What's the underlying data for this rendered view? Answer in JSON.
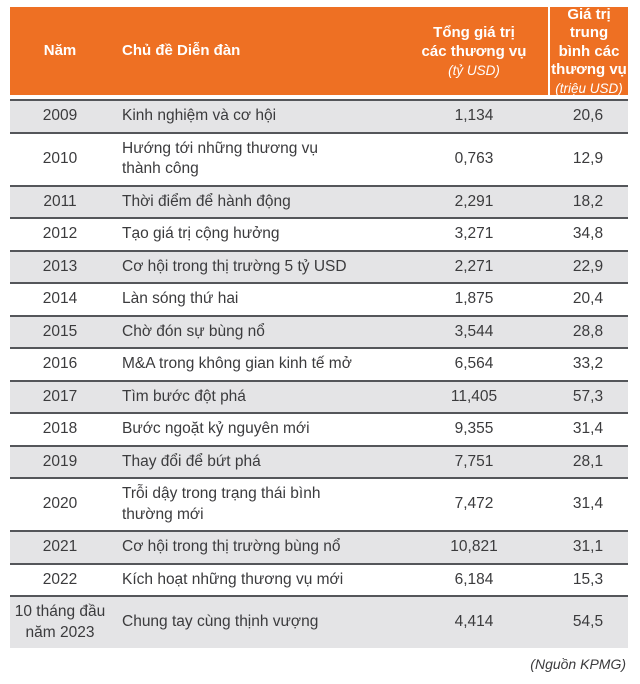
{
  "chart_data": {
    "type": "table",
    "columns": [
      {
        "label": "Năm",
        "unit": ""
      },
      {
        "label": "Chủ đề Diễn đàn",
        "unit": ""
      },
      {
        "label": "Tổng giá trị\ncác thương vụ",
        "unit": "(tỷ USD)"
      },
      {
        "label": "Giá trị trung\nbình các\nthương vụ",
        "unit": "(triệu USD)"
      }
    ],
    "rows": [
      {
        "year": "2009",
        "theme": "Kinh nghiệm và cơ hội",
        "total": "1,134",
        "avg": "20,6"
      },
      {
        "year": "2010",
        "theme": "Hướng tới những thương vụ\nthành công",
        "total": "0,763",
        "avg": "12,9"
      },
      {
        "year": "2011",
        "theme": "Thời điểm để hành động",
        "total": "2,291",
        "avg": "18,2"
      },
      {
        "year": "2012",
        "theme": "Tạo giá trị cộng hưởng",
        "total": "3,271",
        "avg": "34,8"
      },
      {
        "year": "2013",
        "theme": "Cơ hội trong thị trường 5 tỷ USD",
        "total": "2,271",
        "avg": "22,9"
      },
      {
        "year": "2014",
        "theme": "Làn sóng thứ hai",
        "total": "1,875",
        "avg": "20,4"
      },
      {
        "year": "2015",
        "theme": "Chờ đón sự bùng nổ",
        "total": "3,544",
        "avg": "28,8"
      },
      {
        "year": "2016",
        "theme": "M&A trong không gian kinh tế mở",
        "total": "6,564",
        "avg": "33,2"
      },
      {
        "year": "2017",
        "theme": "Tìm bước đột phá",
        "total": "11,405",
        "avg": "57,3"
      },
      {
        "year": "2018",
        "theme": "Bước ngoặt kỷ nguyên mới",
        "total": "9,355",
        "avg": "31,4"
      },
      {
        "year": "2019",
        "theme": "Thay đổi để bứt phá",
        "total": "7,751",
        "avg": "28,1"
      },
      {
        "year": "2020",
        "theme": "Trỗi dậy trong trạng thái bình\nthường mới",
        "total": "7,472",
        "avg": "31,4"
      },
      {
        "year": "2021",
        "theme": "Cơ hội trong thị trường bùng nổ",
        "total": "10,821",
        "avg": "31,1"
      },
      {
        "year": "2022",
        "theme": "Kích hoạt những thương vụ mới",
        "total": "6,184",
        "avg": "15,3"
      },
      {
        "year": "10 tháng đầu\nnăm 2023",
        "theme": "Chung tay cùng thịnh vượng",
        "total": "4,414",
        "avg": "54,5"
      }
    ],
    "source_note": "(Nguồn KPMG)"
  },
  "colors": {
    "header_bg": "#EE7023",
    "header_text": "#FFFFFF",
    "row_alt_bg": "#E4E4E6",
    "row_bg": "#FFFFFF",
    "border": "#54565A",
    "text": "#3B3B3D",
    "divider": "#FFFFFF"
  }
}
